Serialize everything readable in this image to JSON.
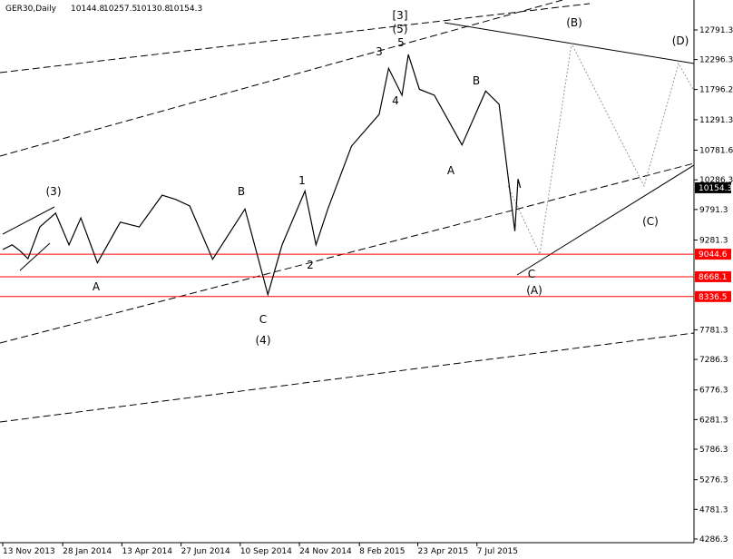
{
  "chart_data": {
    "type": "line",
    "title": "GER30,Daily",
    "ohlc_header": [
      10144.8,
      10257.5,
      10130.8,
      10154.3
    ],
    "x": [
      "2013-11-13",
      "2013-11-25",
      "2013-12-05",
      "2013-12-15",
      "2013-12-30",
      "2014-01-19",
      "2014-02-05",
      "2014-02-20",
      "2014-03-13",
      "2014-04-11",
      "2014-05-05",
      "2014-06-03",
      "2014-06-20",
      "2014-07-08",
      "2014-08-06",
      "2014-09-16",
      "2014-10-15",
      "2014-11-02",
      "2014-12-01",
      "2014-12-15",
      "2014-12-30",
      "2015-01-29",
      "2015-03-05",
      "2015-03-17",
      "2015-04-03",
      "2015-04-11",
      "2015-04-25",
      "2015-05-14",
      "2015-06-18",
      "2015-07-18",
      "2015-08-04",
      "2015-08-24",
      "2015-08-28",
      "2015-08-31"
    ],
    "series": [
      {
        "name": "GER30",
        "color": "#000000",
        "values": [
          9122,
          9200,
          9100,
          8970,
          9500,
          9730,
          9200,
          9650,
          8900,
          9580,
          9500,
          10030,
          9960,
          9850,
          8960,
          9800,
          8370,
          9200,
          10100,
          9200,
          9800,
          10850,
          11380,
          12150,
          11700,
          12380,
          11800,
          11700,
          10870,
          11770,
          11550,
          9430,
          10300,
          10154.3
        ]
      }
    ],
    "xlim": [
      "2013-11-13",
      "2016-04-07"
    ],
    "xticks": [
      {
        "value": "2013-11-13",
        "label": "13 Nov 2013"
      },
      {
        "value": "2014-01-28",
        "label": "28 Jan 2014"
      },
      {
        "value": "2014-04-13",
        "label": "13 Apr 2014"
      },
      {
        "value": "2014-06-27",
        "label": "27 Jun 2014"
      },
      {
        "value": "2014-09-10",
        "label": "10 Sep 2014"
      },
      {
        "value": "2014-11-24",
        "label": "24 Nov 2014"
      },
      {
        "value": "2015-02-08",
        "label": "8 Feb 2015"
      },
      {
        "value": "2015-04-23",
        "label": "23 Apr 2015"
      },
      {
        "value": "2015-07-07",
        "label": "7 Jul 2015"
      }
    ],
    "ylim": [
      4225,
      13170
    ],
    "yticks": [
      12791.3,
      12296.3,
      11796.2,
      11291.3,
      10781.6,
      10286.3,
      9791.3,
      9281.3,
      7781.3,
      7286.3,
      6776.3,
      6281.3,
      5786.3,
      5276.3,
      4781.3,
      4286.3
    ],
    "levels": [
      {
        "value": 9044.6,
        "color": "#ff0000"
      },
      {
        "value": 8668.1,
        "color": "#ff0000"
      },
      {
        "value": 8336.5,
        "color": "#ff0000"
      }
    ],
    "current_price": 10154.3,
    "annotations": [
      "(3)",
      "A",
      "B",
      "C",
      "(4)",
      "1",
      "2",
      "3",
      "4",
      "5",
      "(5)",
      "[3]",
      "A",
      "B",
      "C",
      "(A)",
      "(B)",
      "(C)",
      "(D)"
    ]
  }
}
